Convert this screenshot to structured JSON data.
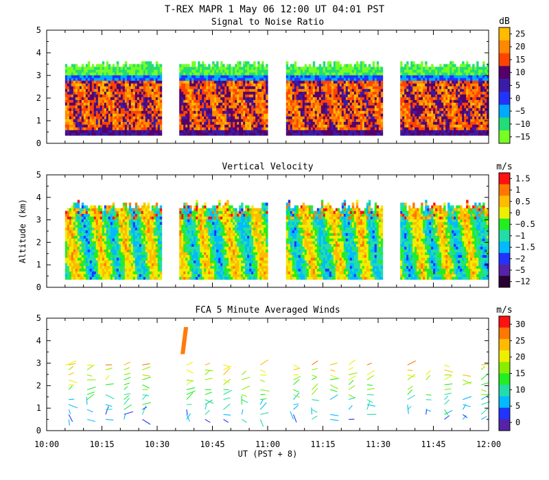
{
  "figure": {
    "title": "T-REX   MAPR   1 May 06   12:00 UT   04:01   PST"
  },
  "chart_data": [
    {
      "type": "heatmap",
      "title": "Signal to Noise Ratio",
      "xlabel": "",
      "ylabel": "",
      "xlim": [
        "10:00",
        "12:00"
      ],
      "ylim": [
        0,
        5
      ],
      "yticks": [
        "0",
        "1",
        "2",
        "3",
        "4",
        "5"
      ],
      "data_gaps": [
        [
          "10:31",
          "10:36"
        ],
        [
          "11:00",
          "11:05"
        ],
        [
          "11:31",
          "11:36"
        ]
      ],
      "altitude_coverage_km": [
        0.35,
        3.4
      ],
      "colorbar": {
        "unit": "dB",
        "labels": [
          "25",
          "20",
          "15",
          "10",
          "5",
          "0",
          "−5",
          "−10",
          "−15"
        ],
        "colors": [
          "#ffbb00",
          "#ff8800",
          "#ff4400",
          "#55006a",
          "#3a1caa",
          "#2233ff",
          "#00aaff",
          "#22dd77",
          "#77ff22"
        ]
      }
    },
    {
      "type": "heatmap",
      "title": "Vertical Velocity",
      "xlabel": "",
      "ylabel": "Altitude (km)",
      "xlim": [
        "10:00",
        "12:00"
      ],
      "ylim": [
        0,
        5
      ],
      "yticks": [
        "0",
        "1",
        "2",
        "3",
        "4",
        "5"
      ],
      "data_gaps": [
        [
          "10:31",
          "10:36"
        ],
        [
          "11:00",
          "11:05"
        ],
        [
          "11:31",
          "11:36"
        ]
      ],
      "altitude_coverage_km": [
        0.35,
        3.4
      ],
      "colorbar": {
        "unit": "m/s",
        "labels": [
          "1.5",
          "1",
          "0.5",
          "0",
          "−0.5",
          "−1",
          "−1.5",
          "−2",
          "−5",
          "−12"
        ],
        "colors": [
          "#ff1111",
          "#ff7700",
          "#ffbb00",
          "#eeee00",
          "#22ee22",
          "#22ddaa",
          "#00bbff",
          "#2233ff",
          "#5522aa",
          "#2a0033"
        ]
      }
    },
    {
      "type": "scatter",
      "title": "FCA 5 Minute Averaged Winds",
      "xlabel": "UT  (PST + 8)",
      "ylabel": "",
      "xlim": [
        "10:00",
        "12:00"
      ],
      "ylim": [
        0,
        5
      ],
      "xticks": [
        "10:00",
        "10:15",
        "10:30",
        "10:45",
        "11:00",
        "11:15",
        "11:30",
        "11:45",
        "12:00"
      ],
      "yticks": [
        "0",
        "1",
        "2",
        "3",
        "4",
        "5"
      ],
      "wind_profile_times": [
        "10:06",
        "10:11",
        "10:16",
        "10:21",
        "10:26",
        "10:38",
        "10:43",
        "10:48",
        "10:53",
        "10:58",
        "11:07",
        "11:12",
        "11:17",
        "11:22",
        "11:27",
        "11:38",
        "11:43",
        "11:48",
        "11:53",
        "11:58"
      ],
      "colorbar": {
        "unit": "m/s",
        "labels": [
          "30",
          "25",
          "20",
          "15",
          "10",
          "5",
          "0"
        ],
        "colors": [
          "#ff1111",
          "#ff7700",
          "#ffbb00",
          "#eeee00",
          "#88ee00",
          "#22ee22",
          "#22ddaa",
          "#00bbff",
          "#2233ff",
          "#5522aa"
        ]
      }
    }
  ]
}
